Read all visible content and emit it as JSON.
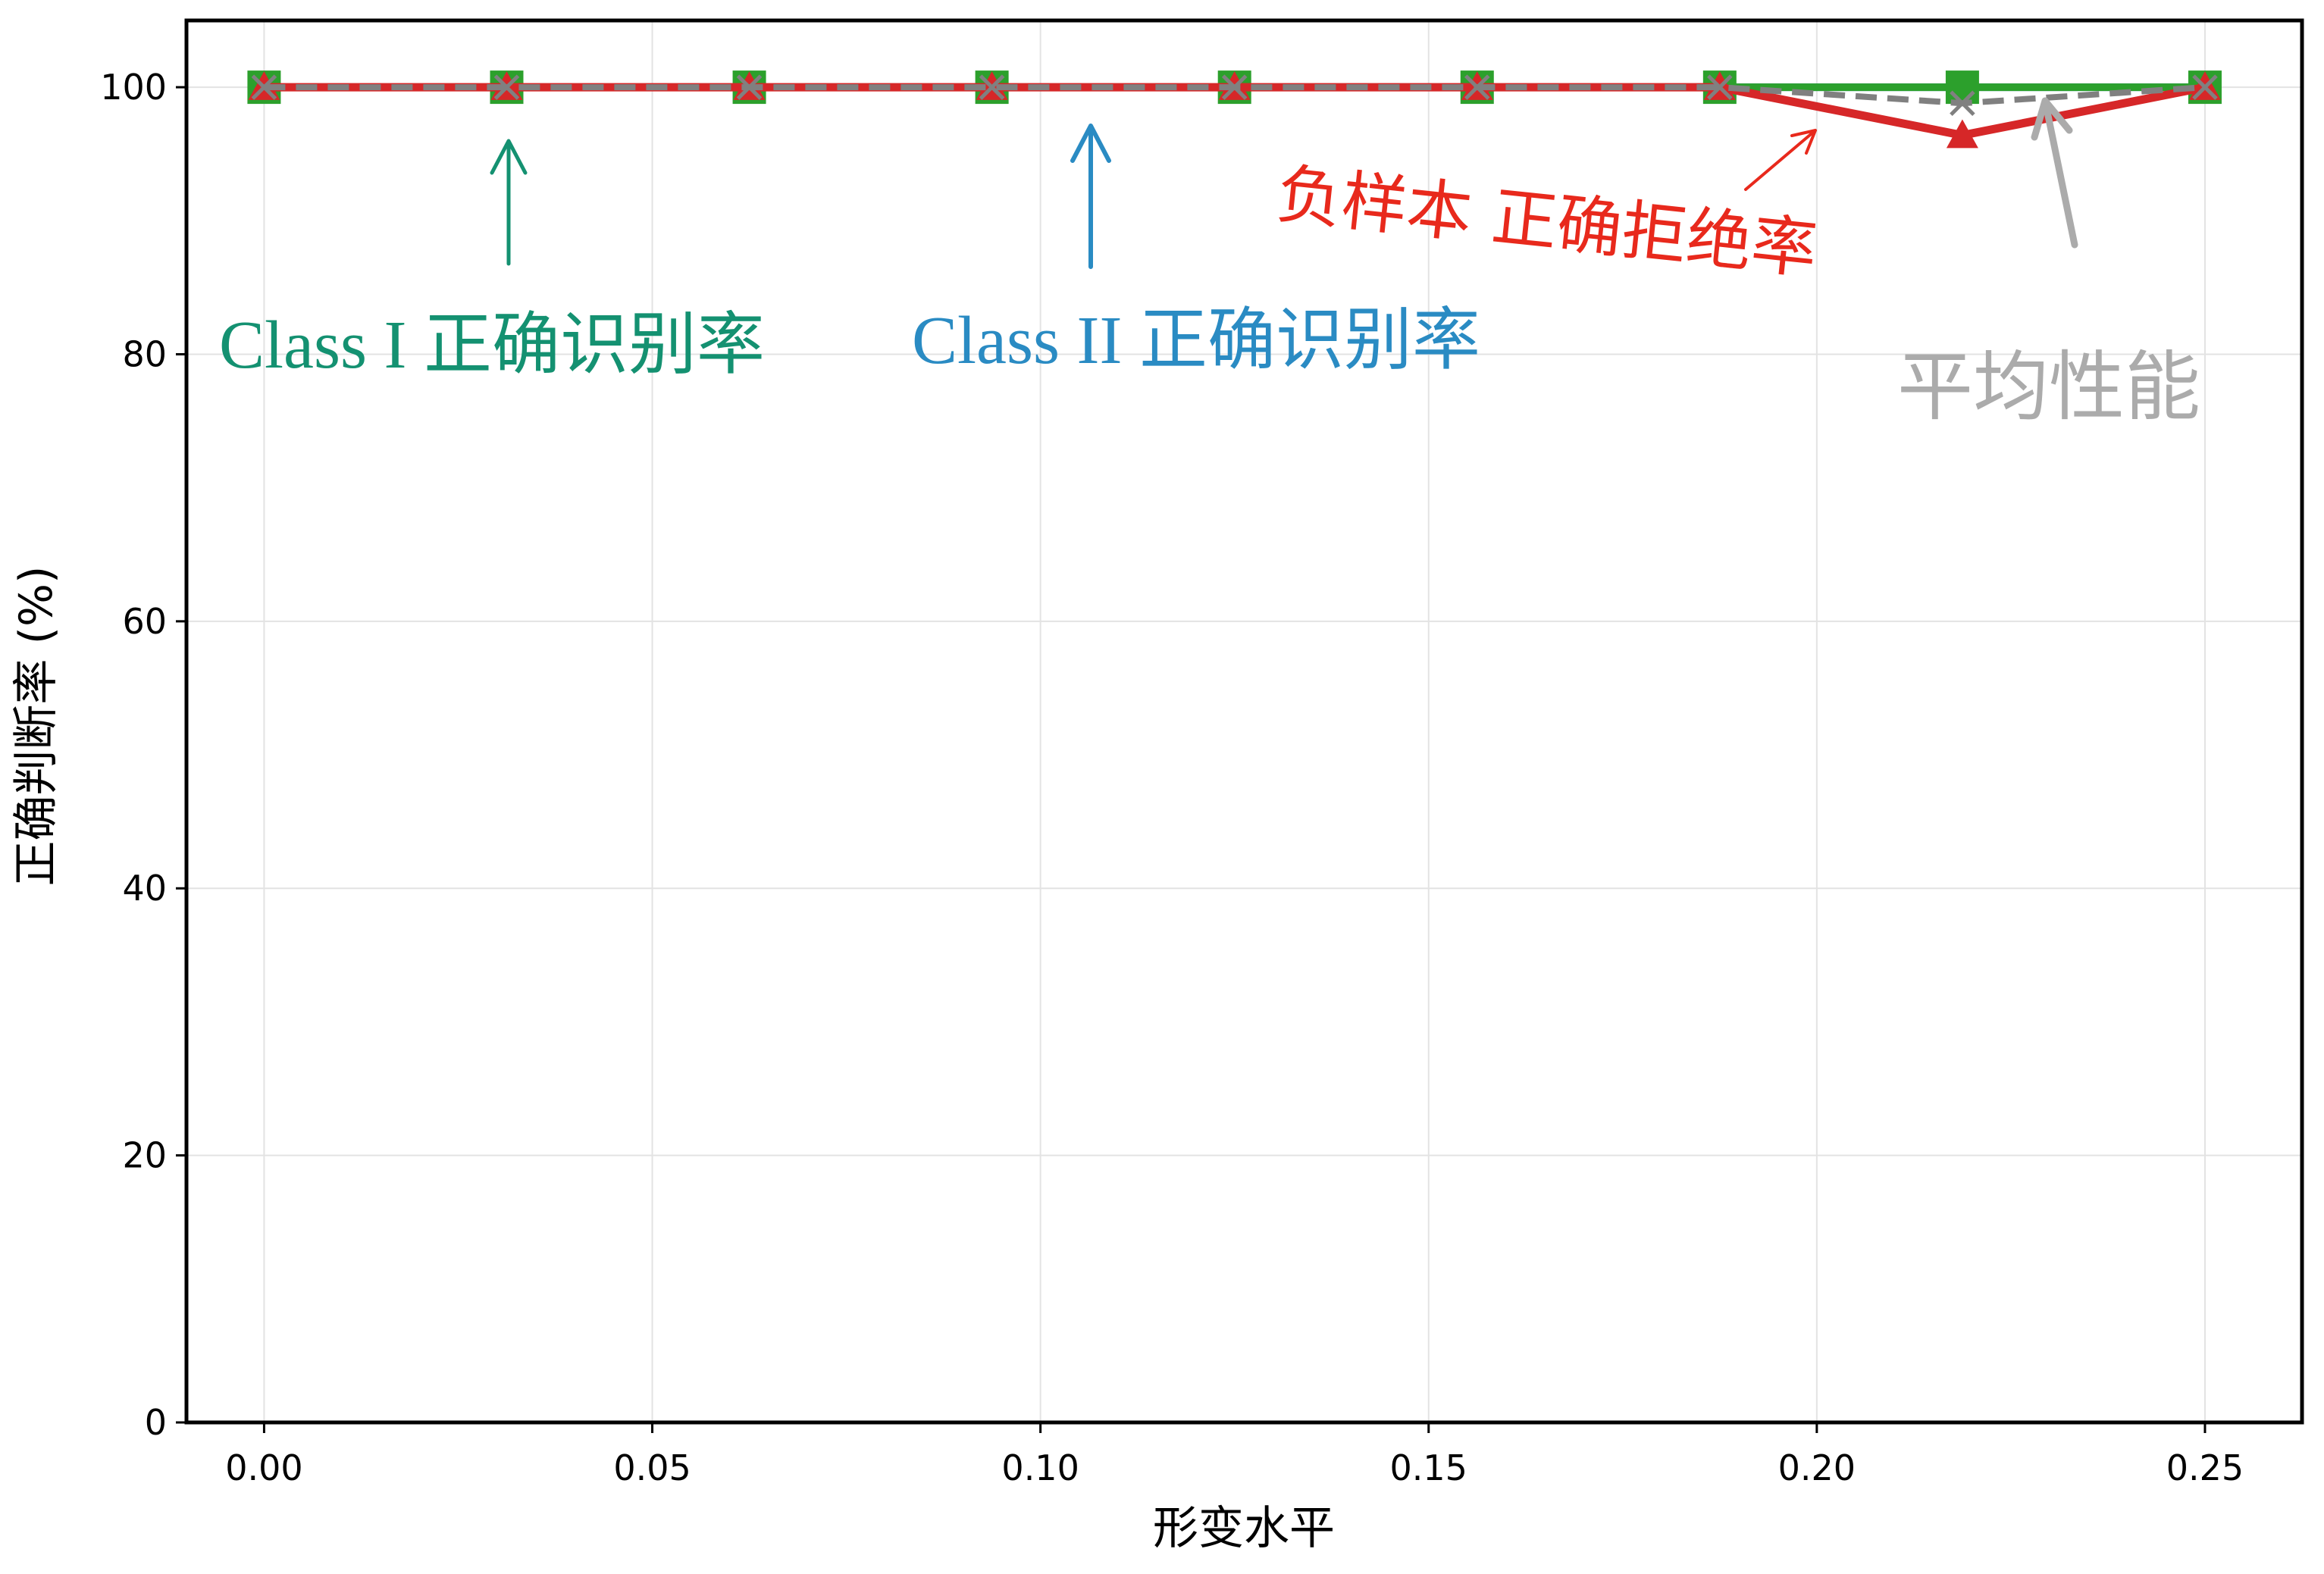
{
  "chart_data": {
    "type": "line",
    "xlabel": "形变水平",
    "ylabel": "正确判断率 (%)",
    "xlim": [
      -0.01,
      0.2625
    ],
    "ylim": [
      0,
      105
    ],
    "xticks": [
      0,
      0.05,
      0.1,
      0.15,
      0.2,
      0.25
    ],
    "xtick_labels": [
      "0.00",
      "0.05",
      "0.10",
      "0.15",
      "0.20",
      "0.25"
    ],
    "yticks": [
      0,
      20,
      40,
      60,
      80,
      100
    ],
    "ytick_labels": [
      "0",
      "20",
      "40",
      "60",
      "80",
      "100"
    ],
    "grid": true,
    "x": [
      0,
      0.03125,
      0.0625,
      0.09375,
      0.125,
      0.15625,
      0.1875,
      0.21875,
      0.25
    ],
    "series": [
      {
        "name": "Class II 正确识别率",
        "values": [
          100,
          100,
          100,
          100,
          100,
          100,
          100,
          100,
          100
        ],
        "color": "#1f77b4",
        "label_color": "#2a8bc3",
        "marker": "circle",
        "linestyle": "solid"
      },
      {
        "name": "Class I 正确识别率",
        "values": [
          100,
          100,
          100,
          100,
          100,
          100,
          100,
          100,
          100
        ],
        "color": "#2ca02c",
        "label_color": "#149171",
        "marker": "square",
        "linestyle": "solid"
      },
      {
        "name": "负样本 正确拒绝率",
        "values": [
          100,
          100,
          100,
          100,
          100,
          100,
          100,
          96.4,
          100
        ],
        "color": "#d62728",
        "label_color": "#e8291c",
        "marker": "triangle",
        "linestyle": "solid"
      },
      {
        "name": "平均性能",
        "values": [
          100,
          100,
          100,
          100,
          100,
          100,
          100,
          98.8,
          100
        ],
        "color": "#808080",
        "label_color": "#ababab",
        "marker": "x",
        "linestyle": "dashed"
      }
    ]
  }
}
